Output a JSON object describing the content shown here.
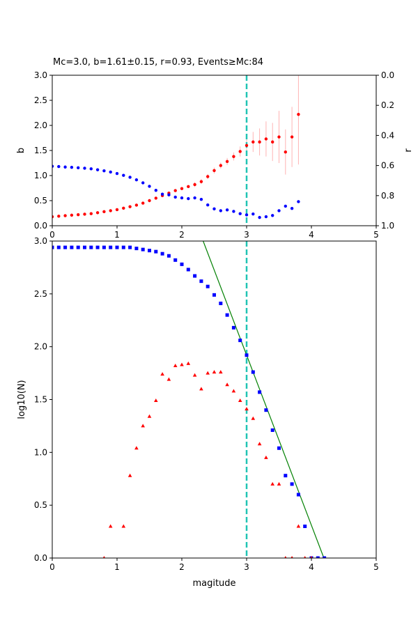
{
  "chart_data": [
    {
      "type": "scatter",
      "title": "Mc=3.0, b=1.61±0.15, r=0.93, Events≥Mc:84",
      "xlabel": "",
      "ylabel": "b",
      "y2label": "r",
      "xlim": [
        0,
        5
      ],
      "ylim": [
        0,
        3
      ],
      "y2lim": [
        1.0,
        0.0
      ],
      "y2_inverted": true,
      "x_ticks": [
        "0",
        "1",
        "2",
        "3",
        "4",
        "5"
      ],
      "y_ticks": [
        "0.0",
        "0.5",
        "1.0",
        "1.5",
        "2.0",
        "2.5",
        "3.0"
      ],
      "y2_ticks": [
        "0.0",
        "0.2",
        "0.4",
        "0.6",
        "0.8",
        "1.0"
      ],
      "mc_line": {
        "x": 3.0,
        "color": "#20c4b4",
        "style": "dashed"
      },
      "series": [
        {
          "marker": "circle",
          "color": "#ff0000",
          "axis": "left",
          "errorbar_color": "#ffb3b3",
          "x": [
            0.0,
            0.1,
            0.2,
            0.3,
            0.4,
            0.5,
            0.6,
            0.7,
            0.8,
            0.9,
            1.0,
            1.1,
            1.2,
            1.3,
            1.4,
            1.5,
            1.6,
            1.7,
            1.8,
            1.9,
            2.0,
            2.1,
            2.2,
            2.3,
            2.4,
            2.5,
            2.6,
            2.7,
            2.8,
            2.9,
            3.0,
            3.1,
            3.2,
            3.3,
            3.4,
            3.5,
            3.6,
            3.7,
            3.8
          ],
          "y": [
            0.18,
            0.19,
            0.2,
            0.21,
            0.22,
            0.23,
            0.24,
            0.26,
            0.28,
            0.3,
            0.32,
            0.35,
            0.38,
            0.41,
            0.45,
            0.5,
            0.55,
            0.6,
            0.65,
            0.7,
            0.74,
            0.78,
            0.82,
            0.88,
            0.98,
            1.1,
            1.2,
            1.28,
            1.38,
            1.48,
            1.6,
            1.67,
            1.67,
            1.73,
            1.67,
            1.77,
            1.47,
            1.77,
            2.22
          ],
          "err": [
            0.02,
            0.02,
            0.02,
            0.02,
            0.02,
            0.02,
            0.02,
            0.02,
            0.02,
            0.02,
            0.02,
            0.02,
            0.02,
            0.02,
            0.03,
            0.03,
            0.03,
            0.03,
            0.03,
            0.04,
            0.04,
            0.04,
            0.05,
            0.05,
            0.05,
            0.06,
            0.06,
            0.07,
            0.08,
            0.1,
            0.15,
            0.2,
            0.27,
            0.35,
            0.38,
            0.52,
            0.45,
            0.6,
            1.0
          ]
        },
        {
          "marker": "circle",
          "color": "#0000ff",
          "axis": "right",
          "x": [
            0.0,
            0.1,
            0.2,
            0.3,
            0.4,
            0.5,
            0.6,
            0.7,
            0.8,
            0.9,
            1.0,
            1.1,
            1.2,
            1.3,
            1.4,
            1.5,
            1.6,
            1.7,
            1.8,
            1.9,
            2.0,
            2.1,
            2.2,
            2.3,
            2.4,
            2.5,
            2.6,
            2.7,
            2.8,
            2.9,
            3.0,
            3.1,
            3.2,
            3.3,
            3.4,
            3.5,
            3.6,
            3.7,
            3.8
          ],
          "y": [
            0.605,
            0.607,
            0.61,
            0.612,
            0.615,
            0.618,
            0.622,
            0.628,
            0.635,
            0.643,
            0.653,
            0.665,
            0.678,
            0.695,
            0.715,
            0.738,
            0.765,
            0.79,
            0.795,
            0.81,
            0.815,
            0.82,
            0.815,
            0.825,
            0.862,
            0.888,
            0.9,
            0.895,
            0.905,
            0.92,
            0.928,
            0.922,
            0.945,
            0.94,
            0.932,
            0.9,
            0.87,
            0.885,
            0.84
          ]
        }
      ]
    },
    {
      "type": "scatter",
      "title": "",
      "xlabel": "magitude",
      "ylabel": "log10(N)",
      "xlim": [
        0,
        5
      ],
      "ylim": [
        0,
        3
      ],
      "x_ticks": [
        "0",
        "1",
        "2",
        "3",
        "4",
        "5"
      ],
      "y_ticks": [
        "0.0",
        "0.5",
        "1.0",
        "1.5",
        "2.0",
        "2.5",
        "3.0"
      ],
      "mc_line": {
        "x": 3.0,
        "color": "#20c4b4",
        "style": "dashed"
      },
      "fit_line": {
        "color": "#008000",
        "a": 6.75,
        "b": 1.61
      },
      "series": [
        {
          "marker": "square",
          "color": "#0000ff",
          "x": [
            0.0,
            0.1,
            0.2,
            0.3,
            0.4,
            0.5,
            0.6,
            0.7,
            0.8,
            0.9,
            1.0,
            1.1,
            1.2,
            1.3,
            1.4,
            1.5,
            1.6,
            1.7,
            1.8,
            1.9,
            2.0,
            2.1,
            2.2,
            2.3,
            2.4,
            2.5,
            2.6,
            2.7,
            2.8,
            2.9,
            3.0,
            3.1,
            3.2,
            3.3,
            3.4,
            3.5,
            3.6,
            3.7,
            3.8,
            3.9,
            4.0,
            4.1,
            4.2
          ],
          "y": [
            2.94,
            2.94,
            2.94,
            2.94,
            2.94,
            2.94,
            2.94,
            2.94,
            2.94,
            2.94,
            2.94,
            2.94,
            2.94,
            2.93,
            2.92,
            2.91,
            2.9,
            2.88,
            2.86,
            2.82,
            2.78,
            2.73,
            2.67,
            2.62,
            2.57,
            2.49,
            2.41,
            2.3,
            2.18,
            2.06,
            1.92,
            1.76,
            1.57,
            1.4,
            1.21,
            1.04,
            0.78,
            0.7,
            0.6,
            0.3,
            0.0,
            0.0,
            0.0
          ]
        },
        {
          "marker": "triangle",
          "color": "#ff0000",
          "x": [
            0.8,
            0.9,
            1.1,
            1.2,
            1.3,
            1.4,
            1.5,
            1.6,
            1.7,
            1.8,
            1.9,
            2.0,
            2.1,
            2.2,
            2.3,
            2.4,
            2.5,
            2.6,
            2.7,
            2.8,
            2.9,
            3.0,
            3.1,
            3.2,
            3.3,
            3.4,
            3.5,
            3.6,
            3.7,
            3.8,
            3.9,
            4.0
          ],
          "y": [
            0.0,
            0.3,
            0.3,
            0.78,
            1.04,
            1.25,
            1.34,
            1.49,
            1.74,
            1.69,
            1.82,
            1.83,
            1.84,
            1.73,
            1.6,
            1.75,
            1.76,
            1.76,
            1.64,
            1.58,
            1.49,
            1.41,
            1.32,
            1.08,
            0.95,
            0.7,
            0.7,
            0.0,
            0.0,
            0.3,
            0.0,
            0.0
          ]
        }
      ]
    }
  ]
}
